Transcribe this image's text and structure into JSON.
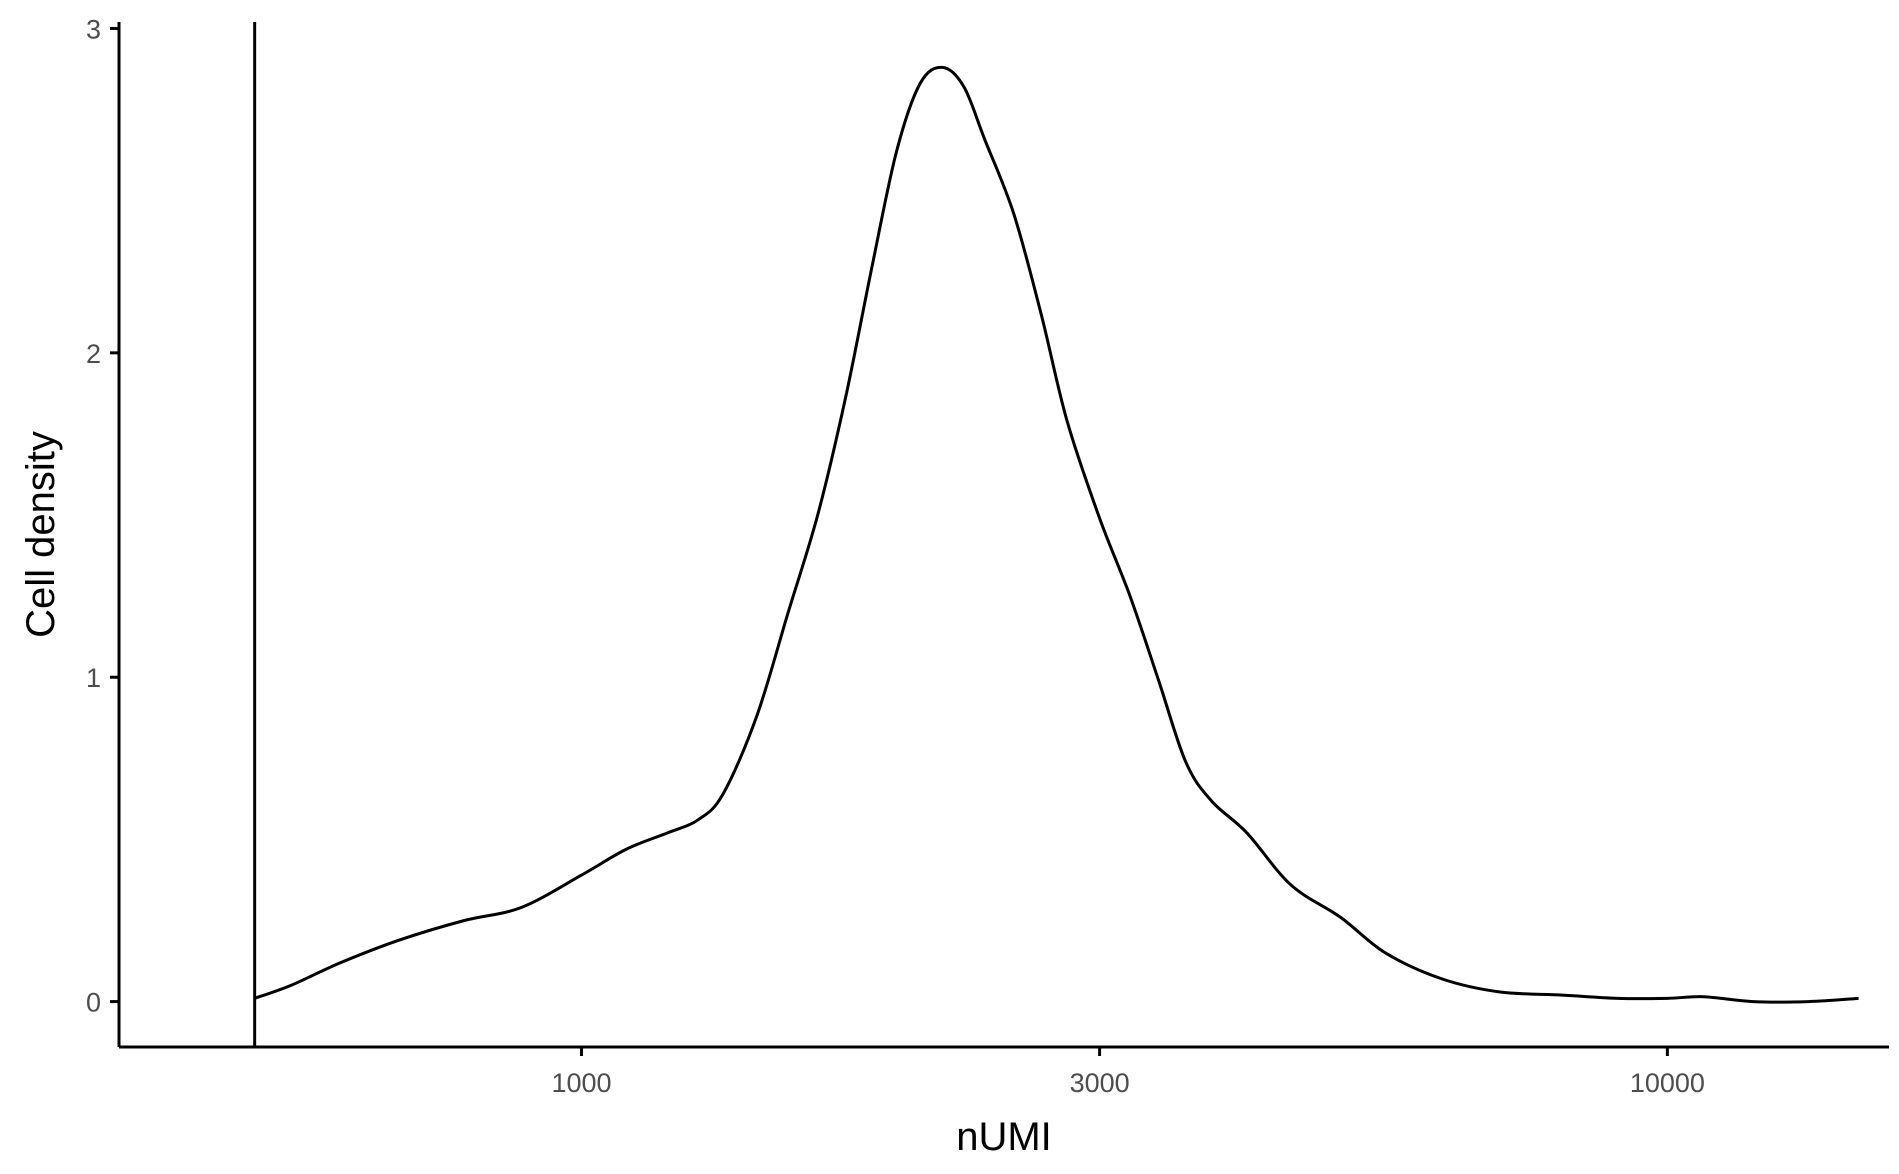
{
  "chart_data": {
    "type": "line",
    "subtype": "density",
    "xlabel": "nUMI",
    "ylabel": "Cell density",
    "x_scale": "log10",
    "xlim": [
      375,
      16000
    ],
    "ylim": [
      -0.14,
      3.02
    ],
    "x_ticks": [
      1000,
      3000,
      10000
    ],
    "y_ticks": [
      0,
      1,
      2,
      3
    ],
    "grid": false,
    "legend": "none",
    "line_color": "#000000",
    "vline": {
      "x": 500
    },
    "series": [
      {
        "x": [
          500,
          540,
          600,
          680,
          780,
          880,
          1000,
          1100,
          1200,
          1280,
          1350,
          1450,
          1550,
          1650,
          1750,
          1850,
          1950,
          2050,
          2150,
          2250,
          2350,
          2500,
          2650,
          2800,
          3000,
          3200,
          3400,
          3600,
          3800,
          4100,
          4500,
          5000,
          5500,
          6200,
          7000,
          8000,
          9000,
          10000,
          10800,
          12000,
          13500,
          15000
        ],
        "y": [
          0.01,
          0.05,
          0.12,
          0.19,
          0.25,
          0.29,
          0.39,
          0.47,
          0.52,
          0.56,
          0.64,
          0.88,
          1.2,
          1.5,
          1.86,
          2.26,
          2.62,
          2.83,
          2.88,
          2.82,
          2.66,
          2.43,
          2.12,
          1.79,
          1.49,
          1.25,
          0.99,
          0.74,
          0.62,
          0.52,
          0.36,
          0.26,
          0.15,
          0.07,
          0.03,
          0.02,
          0.01,
          0.01,
          0.015,
          0.0,
          0.0,
          0.01
        ]
      }
    ]
  }
}
